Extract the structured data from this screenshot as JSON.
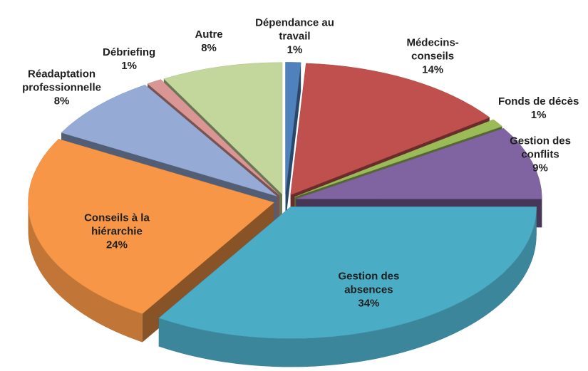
{
  "chart_data": {
    "type": "pie",
    "categories": [
      "Dépendance au travail",
      "Médecins-conseils",
      "Fonds de décès",
      "Gestion des conflits",
      "Gestion des absences",
      "Conseils à la hiérarchie",
      "Réadaptation professionnelle",
      "Débriefing",
      "Autre"
    ],
    "values": [
      1,
      14,
      1,
      9,
      34,
      24,
      8,
      1,
      8
    ],
    "value_labels": [
      "1%",
      "14%",
      "1%",
      "9%",
      "34%",
      "24%",
      "8%",
      "1%",
      "8%"
    ],
    "colors": [
      "#4f81bd",
      "#c0504d",
      "#9bbb59",
      "#8064a2",
      "#4bacc6",
      "#f79646",
      "#95abd6",
      "#d99694",
      "#c3d69b"
    ]
  }
}
